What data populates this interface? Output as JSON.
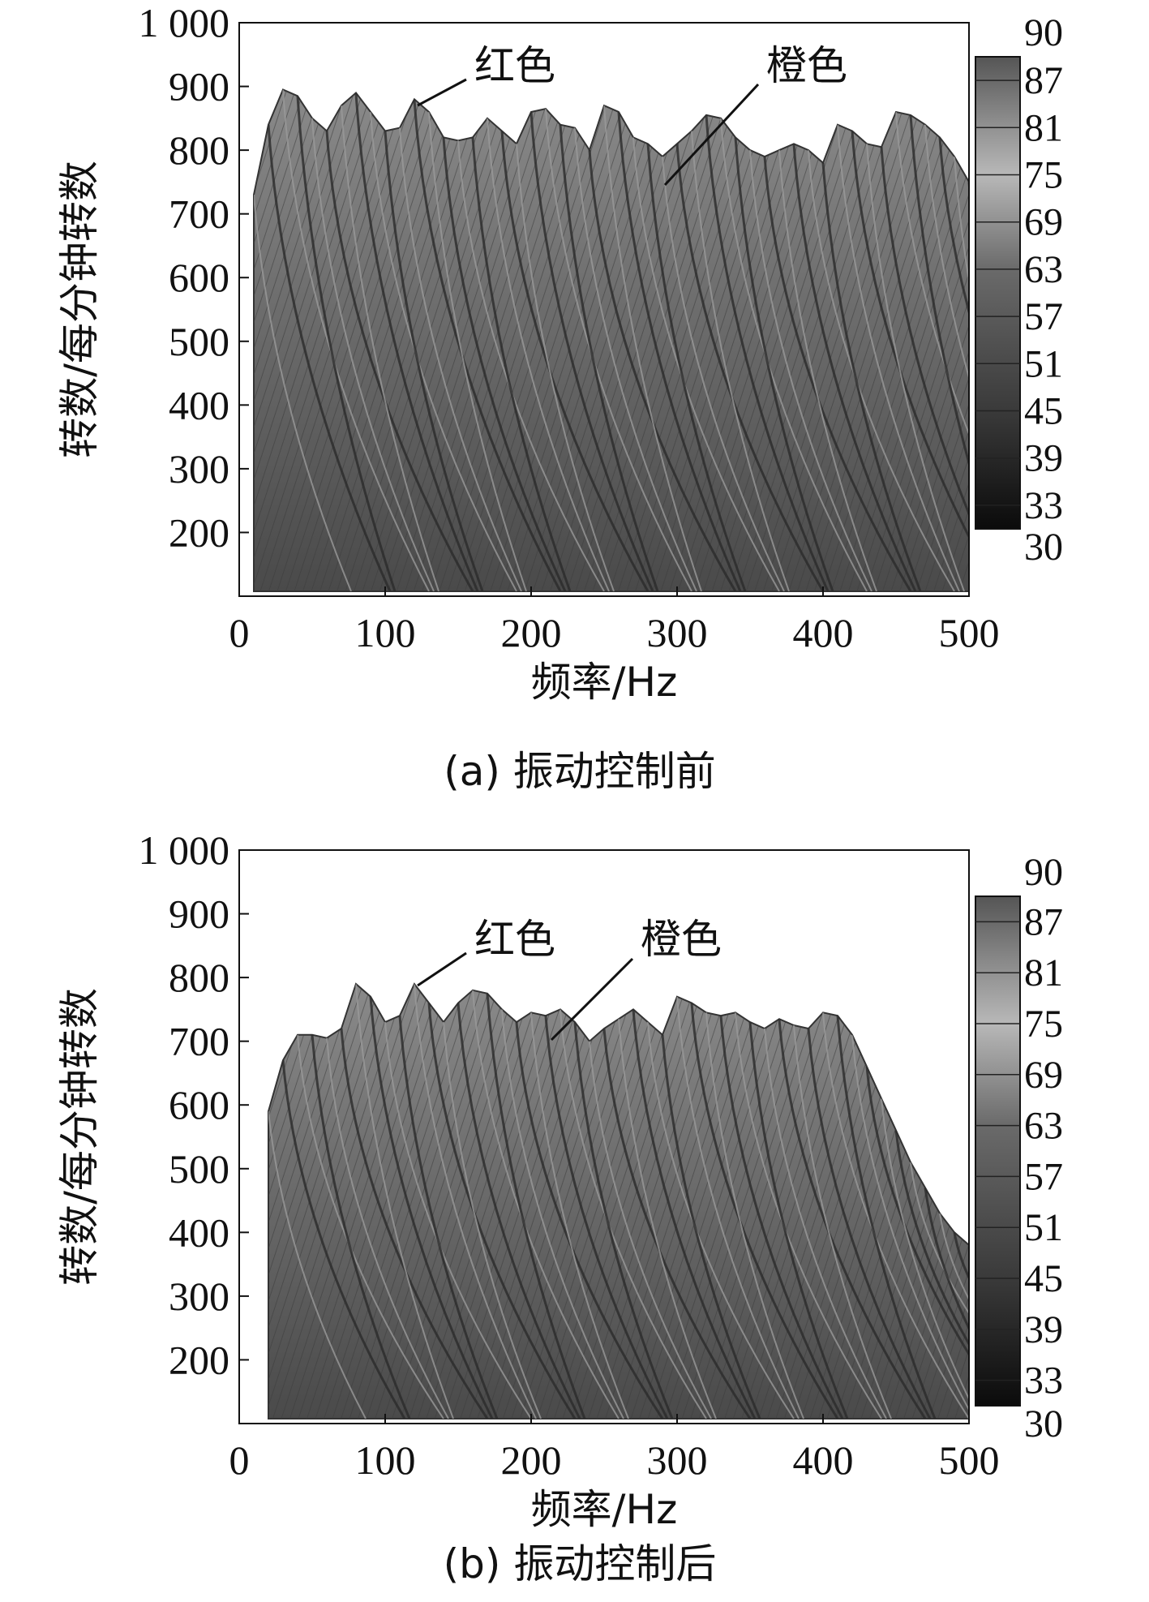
{
  "chart_data": [
    {
      "type": "heatmap",
      "panel": "a",
      "caption": "(a) 振动控制前",
      "xlabel": "频率/Hz",
      "ylabel": "转数/每分钟转数",
      "xlim": [
        0,
        500
      ],
      "ylim": [
        100,
        1000
      ],
      "x_ticks": [
        "0",
        "100",
        "200",
        "300",
        "400",
        "500"
      ],
      "y_ticks": [
        "1 000",
        "900",
        "800",
        "700",
        "600",
        "500",
        "400",
        "300",
        "200"
      ],
      "colorbar": {
        "min": 30,
        "max": 90,
        "ticks": [
          "90",
          "87",
          "81",
          "75",
          "69",
          "63",
          "57",
          "51",
          "45",
          "39",
          "33",
          "30"
        ]
      },
      "annotations": [
        {
          "text": "红色",
          "x": 120,
          "y": 880
        },
        {
          "text": "橙色",
          "x": 290,
          "y": 740
        }
      ],
      "envelope": {
        "x": [
          10,
          20,
          30,
          40,
          50,
          60,
          70,
          80,
          90,
          100,
          110,
          120,
          130,
          140,
          150,
          160,
          170,
          180,
          190,
          200,
          210,
          220,
          230,
          240,
          250,
          260,
          270,
          280,
          290,
          300,
          310,
          320,
          330,
          340,
          350,
          360,
          370,
          380,
          390,
          400,
          410,
          420,
          430,
          440,
          450,
          460,
          470,
          480,
          490,
          500
        ],
        "y": [
          730,
          840,
          895,
          885,
          850,
          830,
          870,
          890,
          860,
          830,
          835,
          880,
          860,
          820,
          815,
          820,
          850,
          830,
          810,
          860,
          865,
          840,
          835,
          800,
          870,
          860,
          820,
          810,
          790,
          810,
          830,
          855,
          850,
          820,
          800,
          790,
          800,
          810,
          800,
          780,
          840,
          830,
          810,
          805,
          860,
          855,
          840,
          820,
          790,
          750
        ]
      }
    },
    {
      "type": "heatmap",
      "panel": "b",
      "caption": "(b) 振动控制后",
      "xlabel": "频率/Hz",
      "ylabel": "转数/每分钟转数",
      "xlim": [
        0,
        500
      ],
      "ylim": [
        100,
        1000
      ],
      "x_ticks": [
        "0",
        "100",
        "200",
        "300",
        "400",
        "500"
      ],
      "y_ticks": [
        "1 000",
        "900",
        "800",
        "700",
        "600",
        "500",
        "400",
        "300",
        "200"
      ],
      "colorbar": {
        "min": 30,
        "max": 90,
        "ticks": [
          "90",
          "87",
          "81",
          "75",
          "69",
          "63",
          "57",
          "51",
          "45",
          "39",
          "33",
          "30"
        ]
      },
      "annotations": [
        {
          "text": "红色",
          "x": 120,
          "y": 790
        },
        {
          "text": "橙色",
          "x": 210,
          "y": 710
        }
      ],
      "envelope": {
        "x": [
          20,
          30,
          40,
          50,
          60,
          70,
          80,
          90,
          100,
          110,
          120,
          130,
          140,
          150,
          160,
          170,
          180,
          190,
          200,
          210,
          220,
          230,
          240,
          250,
          260,
          270,
          280,
          290,
          300,
          310,
          320,
          330,
          340,
          350,
          360,
          370,
          380,
          390,
          400,
          410,
          420,
          430,
          440,
          450,
          460,
          470,
          480,
          490,
          500
        ],
        "y": [
          590,
          670,
          710,
          710,
          705,
          720,
          790,
          770,
          730,
          740,
          790,
          760,
          730,
          760,
          780,
          775,
          750,
          730,
          745,
          740,
          750,
          730,
          700,
          720,
          735,
          750,
          730,
          710,
          770,
          760,
          745,
          740,
          745,
          730,
          720,
          735,
          725,
          720,
          745,
          740,
          710,
          660,
          610,
          560,
          510,
          470,
          430,
          400,
          380
        ]
      }
    }
  ]
}
